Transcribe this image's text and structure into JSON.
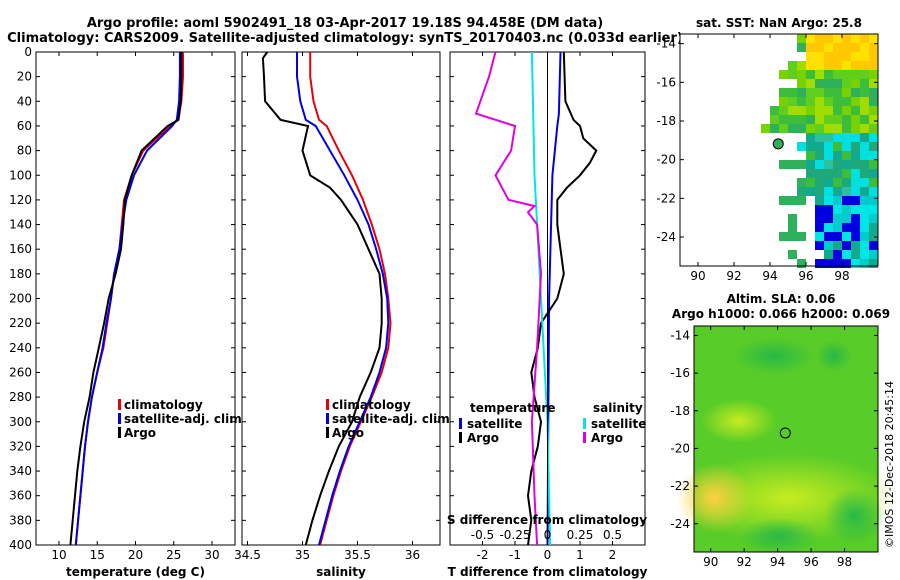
{
  "header": {
    "line1": "Argo profile: aoml 5902491_18 03-Apr-2017 19.18S 94.458E (DM data)",
    "line2": "Climatology: CARS2009. Satellite-adjusted climatology: synTS_20170403.nc (0.033d earlier)"
  },
  "colors": {
    "climatology": "#e8000b",
    "satellite": "#0000e8",
    "argo": "#000000",
    "sat_salinity": "#00e5e5",
    "argo_salinity": "#e000e0"
  },
  "chart_data": [
    {
      "type": "line",
      "id": "temperature",
      "xlabel": "temperature (deg C)",
      "ylabel": "",
      "xlim": [
        7,
        33
      ],
      "ylim": [
        400,
        0
      ],
      "xticks": [
        "10",
        "15",
        "20",
        "25",
        "30"
      ],
      "yticks": [
        "0",
        "20",
        "40",
        "60",
        "80",
        "100",
        "120",
        "140",
        "160",
        "180",
        "200",
        "220",
        "240",
        "260",
        "280",
        "300",
        "320",
        "340",
        "360",
        "380",
        "400"
      ],
      "legend": [
        "climatology",
        "satellite-adj. clim.",
        "Argo"
      ],
      "series": [
        {
          "name": "climatology",
          "depth": [
            0,
            20,
            40,
            55,
            60,
            80,
            100,
            120,
            140,
            160,
            180,
            200,
            220,
            240,
            260,
            280,
            300,
            320,
            340,
            360,
            380,
            400
          ],
          "values": [
            26.2,
            26.2,
            26,
            25.6,
            24.5,
            21,
            19.5,
            18.5,
            18.2,
            17.9,
            17.2,
            16.8,
            16.3,
            15.8,
            15,
            14.3,
            13.8,
            13.4,
            13.1,
            12.8,
            12.5,
            12.2
          ]
        },
        {
          "name": "satellite-adj. clim.",
          "depth": [
            0,
            20,
            40,
            55,
            60,
            80,
            100,
            120,
            140,
            160,
            180,
            200,
            220,
            240,
            260,
            280,
            300,
            320,
            340,
            360,
            380,
            400
          ],
          "values": [
            25.8,
            25.8,
            25.7,
            25.4,
            24.8,
            21.5,
            19.8,
            18.8,
            18.3,
            17.9,
            17.2,
            16.8,
            16.2,
            15.7,
            15,
            14.3,
            13.8,
            13.4,
            13.1,
            12.8,
            12.5,
            12.2
          ]
        },
        {
          "name": "Argo",
          "depth": [
            0,
            20,
            40,
            55,
            60,
            80,
            100,
            120,
            140,
            160,
            180,
            200,
            220,
            240,
            260,
            280,
            300,
            320,
            340,
            360,
            380,
            400
          ],
          "values": [
            26,
            26,
            25.9,
            25.6,
            24.2,
            20.8,
            19.5,
            18.6,
            18.4,
            18.1,
            17.4,
            16.5,
            15.9,
            15.2,
            14.5,
            14,
            13.3,
            12.8,
            12.4,
            12.1,
            11.8,
            11.5
          ]
        }
      ]
    },
    {
      "type": "line",
      "id": "salinity",
      "xlabel": "salinity",
      "ylabel": "",
      "xlim": [
        34.45,
        36.25
      ],
      "ylim": [
        400,
        0
      ],
      "xticks": [
        "34.5",
        "35",
        "35.5",
        "36"
      ],
      "legend": [
        "climatology",
        "satellite-adj. clim.",
        "Argo"
      ],
      "series": [
        {
          "name": "climatology",
          "depth": [
            0,
            20,
            40,
            55,
            60,
            80,
            100,
            120,
            140,
            160,
            180,
            200,
            220,
            240,
            260,
            280,
            300,
            320,
            340,
            360,
            380,
            400
          ],
          "values": [
            35.07,
            35.07,
            35.1,
            35.15,
            35.22,
            35.33,
            35.45,
            35.55,
            35.63,
            35.7,
            35.75,
            35.78,
            35.8,
            35.78,
            35.72,
            35.63,
            35.53,
            35.43,
            35.35,
            35.28,
            35.22,
            35.16
          ]
        },
        {
          "name": "satellite-adj. clim.",
          "depth": [
            0,
            20,
            40,
            55,
            60,
            80,
            100,
            120,
            140,
            160,
            180,
            200,
            220,
            240,
            260,
            280,
            300,
            320,
            340,
            360,
            380,
            400
          ],
          "values": [
            34.95,
            34.95,
            34.98,
            35.03,
            35.12,
            35.25,
            35.38,
            35.5,
            35.6,
            35.67,
            35.73,
            35.77,
            35.78,
            35.76,
            35.7,
            35.62,
            35.52,
            35.42,
            35.34,
            35.27,
            35.21,
            35.15
          ]
        },
        {
          "name": "Argo",
          "depth": [
            0,
            5,
            20,
            40,
            55,
            60,
            80,
            100,
            110,
            120,
            140,
            160,
            180,
            200,
            220,
            240,
            260,
            280,
            300,
            320,
            340,
            360,
            380,
            400
          ],
          "values": [
            34.68,
            34.64,
            34.65,
            34.66,
            34.8,
            35.05,
            35.0,
            35.07,
            35.25,
            35.35,
            35.5,
            35.6,
            35.7,
            35.72,
            35.72,
            35.7,
            35.62,
            35.52,
            35.45,
            35.33,
            35.24,
            35.16,
            35.09,
            35.03
          ]
        }
      ]
    },
    {
      "type": "line",
      "id": "difference",
      "xlabel": "T difference from climatology",
      "x2label": "S difference from climatology",
      "xlim": [
        -3,
        3
      ],
      "ylim": [
        400,
        0
      ],
      "xticks": [
        "-2",
        "-1",
        "0",
        "1",
        "2"
      ],
      "x2ticks": [
        "-0.5",
        "-0.25",
        "0",
        "0.25",
        "0.5"
      ],
      "legend_titles": [
        "temperature",
        "salinity"
      ],
      "legend": [
        "satellite",
        "Argo",
        "satellite",
        "Argo"
      ],
      "series": [
        {
          "name": "temperature satellite",
          "depth": [
            0,
            50,
            60,
            100,
            200,
            400
          ],
          "values": [
            0.4,
            0.35,
            0.3,
            0.15,
            0.05,
            0
          ]
        },
        {
          "name": "temperature Argo",
          "depth": [
            0,
            40,
            55,
            60,
            70,
            80,
            90,
            100,
            110,
            120,
            140,
            160,
            180,
            200,
            220,
            240,
            260,
            280,
            300,
            320,
            340,
            360,
            380,
            400
          ],
          "values": [
            0.5,
            0.55,
            0.8,
            1.0,
            1.1,
            1.5,
            1.3,
            1.0,
            0.6,
            0.3,
            0.3,
            0.4,
            0.5,
            0.3,
            -0.2,
            -0.3,
            -0.5,
            -0.4,
            -0.2,
            -0.3,
            -0.5,
            -0.6,
            -0.5,
            -0.6
          ]
        },
        {
          "name": "salinity satellite",
          "depth": [
            0,
            100,
            200,
            300,
            400
          ],
          "values": [
            -0.12,
            -0.1,
            -0.05,
            0,
            0.02
          ]
        },
        {
          "name": "salinity Argo",
          "depth": [
            0,
            20,
            50,
            60,
            80,
            100,
            120,
            125,
            130,
            140,
            180,
            240,
            300,
            360,
            400
          ],
          "values": [
            -0.4,
            -0.45,
            -0.55,
            -0.25,
            -0.28,
            -0.4,
            -0.3,
            -0.1,
            -0.15,
            -0.08,
            -0.05,
            -0.08,
            -0.12,
            -0.1,
            -0.08
          ]
        }
      ]
    },
    {
      "type": "heatmap",
      "id": "sst-map",
      "title": "sat. SST: NaN Argo: 25.8",
      "xlim": [
        89,
        100
      ],
      "ylim": [
        -25.5,
        -13.5
      ],
      "xticks": [
        "90",
        "92",
        "94",
        "96",
        "98"
      ],
      "yticks": [
        "-14",
        "-16",
        "-18",
        "-20",
        "-22",
        "-24"
      ],
      "argo_position": [
        94.458,
        -19.18
      ]
    },
    {
      "type": "heatmap",
      "id": "sla-map",
      "title": "Altim. SLA: 0.06",
      "subtitle": "Argo h1000: 0.066 h2000: 0.069",
      "xlim": [
        89,
        100
      ],
      "ylim": [
        -25.5,
        -13.5
      ],
      "xticks": [
        "90",
        "92",
        "94",
        "96",
        "98"
      ],
      "yticks": [
        "-14",
        "-16",
        "-18",
        "-20",
        "-22",
        "-24"
      ],
      "argo_position": [
        94.458,
        -19.18
      ]
    }
  ],
  "footer": {
    "credit": "©IMOS 12-Dec-2018 20:45:14"
  }
}
